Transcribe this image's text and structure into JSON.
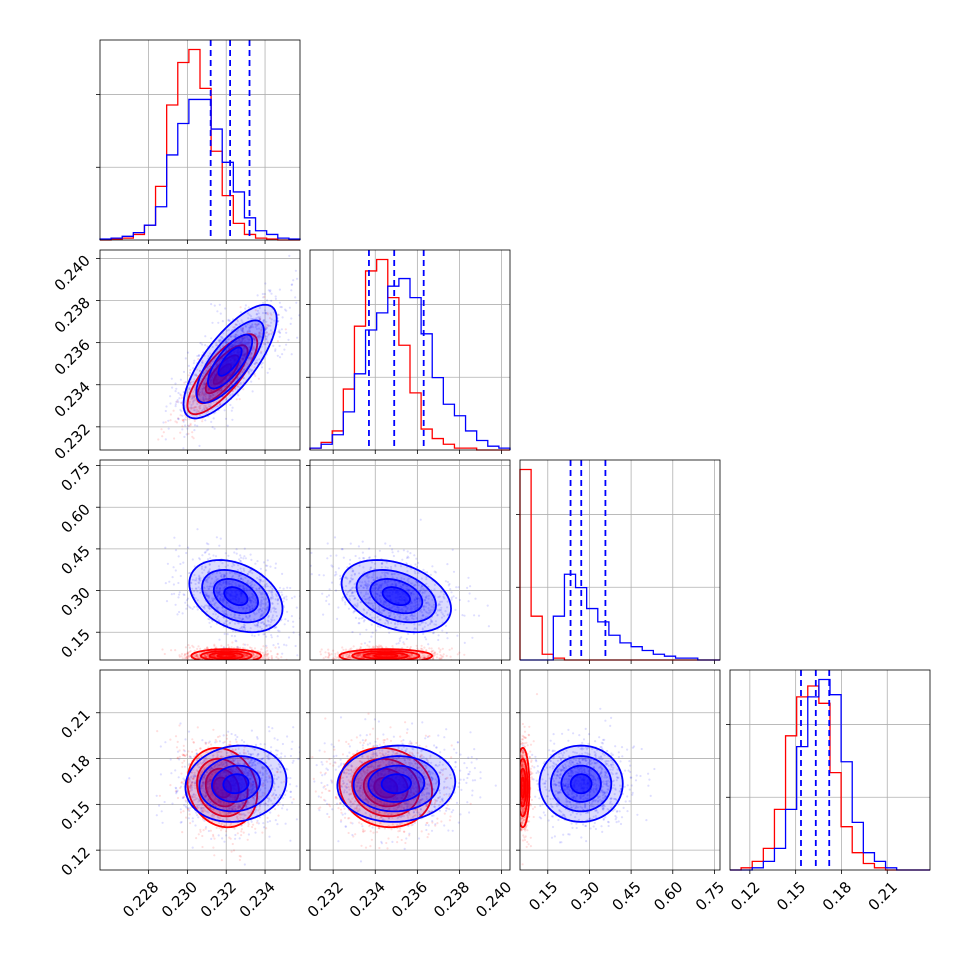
{
  "chart_data": {
    "type": "corner",
    "grid": true,
    "colors": {
      "series_a": "#0000ff",
      "series_b": "#ff0000"
    },
    "parameters": [
      {
        "id": "p1",
        "range": [
          0.2255,
          0.2358
        ],
        "ticks": [
          0.228,
          0.23,
          0.232,
          0.234
        ],
        "tick_labels": [
          "0.228",
          "0.230",
          "0.232",
          "0.234"
        ]
      },
      {
        "id": "p2",
        "range": [
          0.2309,
          0.2404
        ],
        "ticks": [
          0.232,
          0.234,
          0.236,
          0.238,
          0.24
        ],
        "tick_labels": [
          "0.232",
          "0.234",
          "0.236",
          "0.238",
          "0.240"
        ]
      },
      {
        "id": "p3",
        "range": [
          0.05,
          0.77
        ],
        "ticks": [
          0.15,
          0.3,
          0.45,
          0.6,
          0.75
        ],
        "tick_labels": [
          "0.15",
          "0.30",
          "0.45",
          "0.60",
          "0.75"
        ]
      },
      {
        "id": "p4",
        "range": [
          0.107,
          0.238
        ],
        "ticks": [
          0.12,
          0.15,
          0.18,
          0.21
        ],
        "tick_labels": [
          "0.12",
          "0.15",
          "0.18",
          "0.21"
        ]
      }
    ],
    "quantiles_series_a": [
      [
        0.2312,
        0.2322,
        0.2332
      ],
      [
        0.2337,
        0.2349,
        0.2363
      ],
      [
        0.232,
        0.2705,
        0.3575
      ],
      [
        0.1535,
        0.1632,
        0.172
      ]
    ],
    "histograms": [
      {
        "param": "p1",
        "series_a": [
          0.5,
          1,
          2,
          4,
          8,
          18,
          46,
          63,
          76,
          76,
          60,
          42,
          26,
          12,
          5,
          3,
          1,
          0.5
        ],
        "series_b": [
          0,
          0.5,
          1,
          3,
          8,
          29,
          73,
          96,
          103,
          82,
          48,
          24,
          9,
          3,
          1,
          0.5,
          0,
          0
        ]
      },
      {
        "param": "p2",
        "series_a": [
          1,
          3,
          8,
          20,
          40,
          63,
          72,
          86,
          90,
          80,
          61,
          38,
          24,
          18,
          10,
          5,
          2,
          1
        ],
        "series_b": [
          1,
          4,
          10,
          32,
          65,
          94,
          100,
          80,
          55,
          30,
          11,
          6,
          3,
          1,
          1,
          0,
          0,
          0
        ]
      },
      {
        "param": "p3",
        "series_a": [
          0,
          0,
          0,
          23,
          45,
          38,
          27,
          20,
          13,
          9,
          7,
          5,
          3,
          2,
          1,
          1,
          0,
          0
        ],
        "series_b": [
          100,
          23,
          3,
          1,
          0,
          0,
          0,
          0,
          0,
          0,
          0,
          0,
          0,
          0,
          0,
          0,
          0,
          0
        ]
      },
      {
        "param": "p4",
        "series_a": [
          0,
          0,
          1,
          4,
          10,
          28,
          57,
          80,
          88,
          81,
          50,
          22,
          8,
          4,
          1,
          0,
          0,
          0
        ],
        "series_b": [
          0,
          1,
          4,
          10,
          28,
          62,
          80,
          85,
          77,
          45,
          20,
          8,
          3,
          1,
          0,
          0,
          0,
          0
        ]
      }
    ],
    "pairs": [
      {
        "x": "p1",
        "y": "p2",
        "series_a": {
          "center": [
            0.2322,
            0.2351
          ],
          "sd": [
            0.0012,
            0.00135
          ],
          "rho": 0.75
        },
        "series_b": {
          "center": [
            0.2318,
            0.2345
          ],
          "sd": [
            0.0009,
            0.00095
          ],
          "rho": 0.78
        }
      },
      {
        "x": "p1",
        "y": "p3",
        "series_a": {
          "center": [
            0.2325,
            0.28
          ],
          "sd": [
            0.0012,
            0.065
          ],
          "rho": -0.35
        },
        "series_b": {
          "center": [
            0.232,
            0.065
          ],
          "sd": [
            0.0009,
            0.012
          ],
          "rho": 0
        }
      },
      {
        "x": "p2",
        "y": "p3",
        "series_a": {
          "center": [
            0.235,
            0.28
          ],
          "sd": [
            0.0013,
            0.065
          ],
          "rho": -0.35
        },
        "series_b": {
          "center": [
            0.2345,
            0.065
          ],
          "sd": [
            0.0011,
            0.012
          ],
          "rho": 0
        }
      },
      {
        "x": "p1",
        "y": "p4",
        "series_a": {
          "center": [
            0.2325,
            0.1635
          ],
          "sd": [
            0.0013,
            0.0125
          ],
          "rho": 0.1
        },
        "series_b": {
          "center": [
            0.2318,
            0.161
          ],
          "sd": [
            0.0009,
            0.013
          ],
          "rho": -0.15
        }
      },
      {
        "x": "p2",
        "y": "p4",
        "series_a": {
          "center": [
            0.235,
            0.1635
          ],
          "sd": [
            0.0014,
            0.0125
          ],
          "rho": 0.05
        },
        "series_b": {
          "center": [
            0.2345,
            0.161
          ],
          "sd": [
            0.0011,
            0.013
          ],
          "rho": -0.1
        }
      },
      {
        "x": "p3",
        "y": "p4",
        "series_a": {
          "center": [
            0.27,
            0.1635
          ],
          "sd": [
            0.075,
            0.0125
          ],
          "rho": 0
        },
        "series_b": {
          "center": [
            0.06,
            0.161
          ],
          "sd": [
            0.012,
            0.013
          ],
          "rho": 0
        }
      }
    ]
  }
}
